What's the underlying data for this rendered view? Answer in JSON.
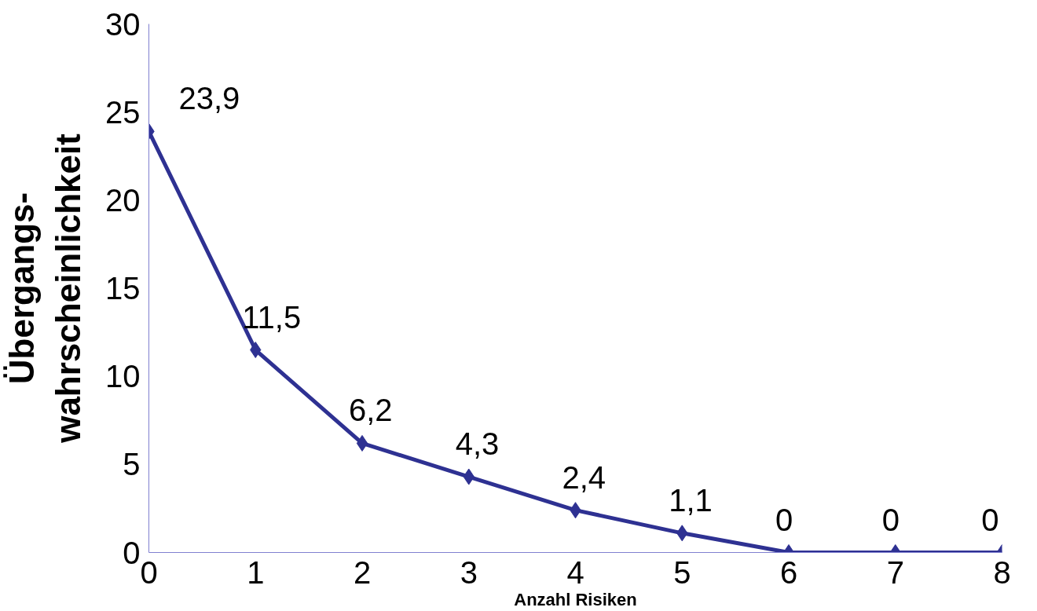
{
  "chart_data": {
    "type": "line",
    "xlabel": "Anzahl Risiken",
    "ylabel": "Übergangs-\nwahrscheinlichkeit",
    "x": [
      0,
      1,
      2,
      3,
      4,
      5,
      6,
      7,
      8
    ],
    "series": [
      {
        "color": "#2e3192",
        "values": [
          23.9,
          11.5,
          6.2,
          4.3,
          2.4,
          1.1,
          0,
          0,
          0
        ],
        "value_labels": [
          "23,9",
          "11,5",
          "6,2",
          "4,3",
          "2,4",
          "1,1",
          "0",
          "0",
          "0"
        ]
      }
    ],
    "xlim": [
      0,
      8
    ],
    "xticks": [
      0,
      1,
      2,
      3,
      4,
      5,
      6,
      7,
      8
    ],
    "ylim": [
      0,
      30
    ],
    "yticks": [
      0,
      5,
      10,
      15,
      20,
      25,
      30
    ],
    "grid": false,
    "marker": "diamond",
    "line_style": "solid"
  }
}
